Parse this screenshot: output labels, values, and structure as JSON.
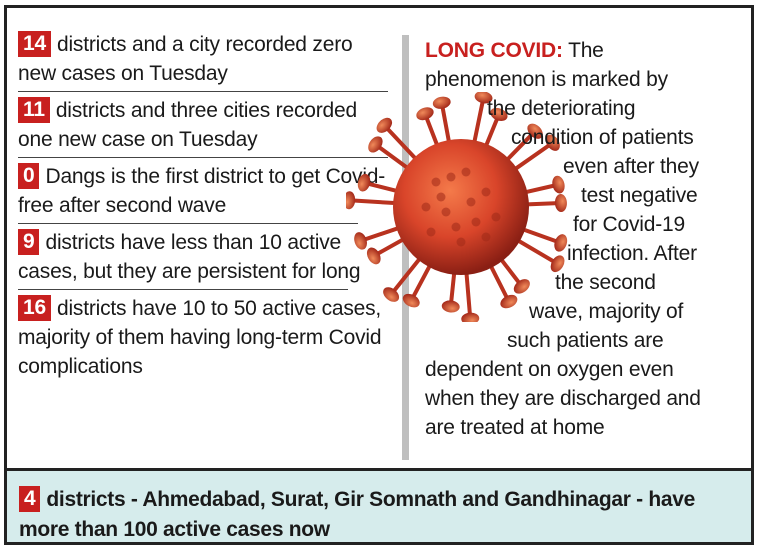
{
  "stats": [
    {
      "number": "14",
      "text": "districts and a city recorded zero new cases on Tuesday"
    },
    {
      "number": "11",
      "text": "districts and three cities recorded one new case on Tuesday"
    },
    {
      "number": "0",
      "text": "Dangs is the first district to get Covid-free after second wave"
    },
    {
      "number": "9",
      "text": "districts have less than 10 active cases, but they are persistent for long"
    },
    {
      "number": "16",
      "text": "districts have 10 to 50 active cases, majority of them having long-term Covid complications"
    }
  ],
  "long_covid": {
    "heading": "LONG COVID:",
    "lines": [
      "The",
      "phenomenon is marked by",
      "the deteriorating",
      "condition of patients",
      "even after they",
      "test negative",
      "for Covid-19",
      "infection. After",
      "the second",
      "wave, majority of",
      "such patients are",
      "dependent on oxygen even",
      "when they are discharged and",
      "are treated at home"
    ]
  },
  "footer": {
    "number": "4",
    "text": "districts - Ahmedabad, Surat, Gir Somnath and Gandhinagar - have more than 100 active cases now"
  },
  "colors": {
    "accent_red": "#c8201f",
    "footer_band": "#d6ecec",
    "divider_gray": "#bfbfbf",
    "virus_body": "#d9452a"
  },
  "icons": {
    "illustration": "coronavirus-illustration"
  }
}
